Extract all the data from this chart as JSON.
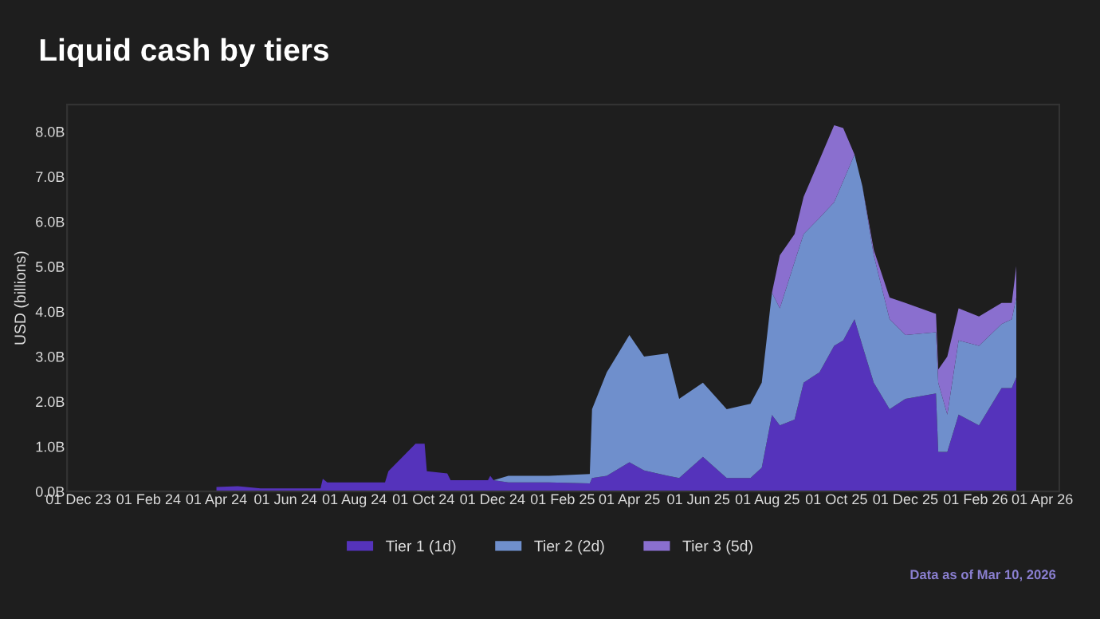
{
  "chart_data": {
    "type": "area",
    "stacked": true,
    "title": "Liquid cash by tiers",
    "ylabel": "USD (billions)",
    "annotations": [
      "Data as of Mar 10, 2026"
    ],
    "x": [
      "2024-04-01",
      "2024-04-20",
      "2024-05-10",
      "2024-07-02",
      "2024-07-04",
      "2024-07-08",
      "2024-08-28",
      "2024-08-31",
      "2024-09-24",
      "2024-10-02",
      "2024-10-04",
      "2024-10-22",
      "2024-10-25",
      "2024-11-27",
      "2024-11-29",
      "2024-12-02",
      "2024-12-15",
      "2025-01-20",
      "2025-02-25",
      "2025-02-27",
      "2025-03-12",
      "2025-04-01",
      "2025-04-14",
      "2025-05-05",
      "2025-05-15",
      "2025-06-05",
      "2025-06-26",
      "2025-07-17",
      "2025-07-27",
      "2025-08-05",
      "2025-08-12",
      "2025-08-25",
      "2025-09-02",
      "2025-09-16",
      "2025-09-29",
      "2025-10-07",
      "2025-10-17",
      "2025-10-24",
      "2025-11-03",
      "2025-11-17",
      "2025-12-01",
      "2025-12-28",
      "2025-12-30",
      "2026-01-07",
      "2026-01-17",
      "2026-02-04",
      "2026-02-24",
      "2026-03-05",
      "2026-03-09"
    ],
    "series": [
      {
        "name": "Tier 1 (1d)",
        "color": "#5533bb",
        "values": [
          0.1,
          0.12,
          0.07,
          0.07,
          0.28,
          0.2,
          0.2,
          0.45,
          1.06,
          1.06,
          0.45,
          0.4,
          0.25,
          0.25,
          0.35,
          0.25,
          0.2,
          0.2,
          0.18,
          0.3,
          0.35,
          0.65,
          0.47,
          0.35,
          0.3,
          0.77,
          0.3,
          0.3,
          0.53,
          1.7,
          1.47,
          1.6,
          2.42,
          2.65,
          3.24,
          3.36,
          3.83,
          3.24,
          2.42,
          1.83,
          2.06,
          2.18,
          0.88,
          0.88,
          1.71,
          1.47,
          2.3,
          2.3,
          2.54
        ]
      },
      {
        "name": "Tier 2 (2d)",
        "color": "#6f8fcc",
        "values": [
          0,
          0,
          0,
          0,
          0,
          0,
          0,
          0,
          0,
          0,
          0,
          0,
          0,
          0,
          0,
          0,
          0.15,
          0.15,
          0.21,
          1.53,
          2.3,
          2.83,
          2.53,
          2.72,
          1.76,
          1.65,
          1.53,
          1.65,
          1.89,
          2.72,
          2.6,
          3.5,
          3.3,
          3.43,
          3.19,
          3.54,
          3.66,
          3.54,
          2.83,
          2.0,
          1.42,
          1.36,
          1.54,
          0.83,
          1.65,
          1.77,
          1.42,
          1.53,
          1.77
        ]
      },
      {
        "name": "Tier 3 (5d)",
        "color": "#8a6fcf",
        "values": [
          0,
          0,
          0,
          0,
          0,
          0,
          0,
          0,
          0,
          0,
          0,
          0,
          0,
          0,
          0,
          0,
          0,
          0,
          0,
          0,
          0,
          0,
          0,
          0,
          0,
          0,
          0,
          0,
          0,
          0,
          1.18,
          0.62,
          0.83,
          1.29,
          1.71,
          1.18,
          0,
          0,
          0.12,
          0.48,
          0.71,
          0.41,
          0.29,
          1.29,
          0.71,
          0.65,
          0.47,
          0.36,
          0.7
        ]
      }
    ],
    "xlim": [
      "2023-11-21",
      "2026-04-16"
    ],
    "xticks": [
      {
        "value": "2023-12-01",
        "label": "01 Dec 23"
      },
      {
        "value": "2024-02-01",
        "label": "01 Feb 24"
      },
      {
        "value": "2024-04-01",
        "label": "01 Apr 24"
      },
      {
        "value": "2024-06-01",
        "label": "01 Jun 24"
      },
      {
        "value": "2024-08-01",
        "label": "01 Aug 24"
      },
      {
        "value": "2024-10-01",
        "label": "01 Oct 24"
      },
      {
        "value": "2024-12-01",
        "label": "01 Dec 24"
      },
      {
        "value": "2025-02-01",
        "label": "01 Feb 25"
      },
      {
        "value": "2025-04-01",
        "label": "01 Apr 25"
      },
      {
        "value": "2025-06-01",
        "label": "01 Jun 25"
      },
      {
        "value": "2025-08-01",
        "label": "01 Aug 25"
      },
      {
        "value": "2025-10-01",
        "label": "01 Oct 25"
      },
      {
        "value": "2025-12-01",
        "label": "01 Dec 25"
      },
      {
        "value": "2026-02-01",
        "label": "01 Feb 26"
      },
      {
        "value": "2026-04-01",
        "label": "01 Apr 26"
      }
    ],
    "ylim": [
      0,
      8.6
    ],
    "yticks": [
      {
        "value": 0,
        "label": "0.0B"
      },
      {
        "value": 1,
        "label": "1.0B"
      },
      {
        "value": 2,
        "label": "2.0B"
      },
      {
        "value": 3,
        "label": "3.0B"
      },
      {
        "value": 4,
        "label": "4.0B"
      },
      {
        "value": 5,
        "label": "5.0B"
      },
      {
        "value": 6,
        "label": "6.0B"
      },
      {
        "value": 7,
        "label": "7.0B"
      },
      {
        "value": 8,
        "label": "8.0B"
      }
    ],
    "grid": false,
    "legend": "bottom"
  }
}
